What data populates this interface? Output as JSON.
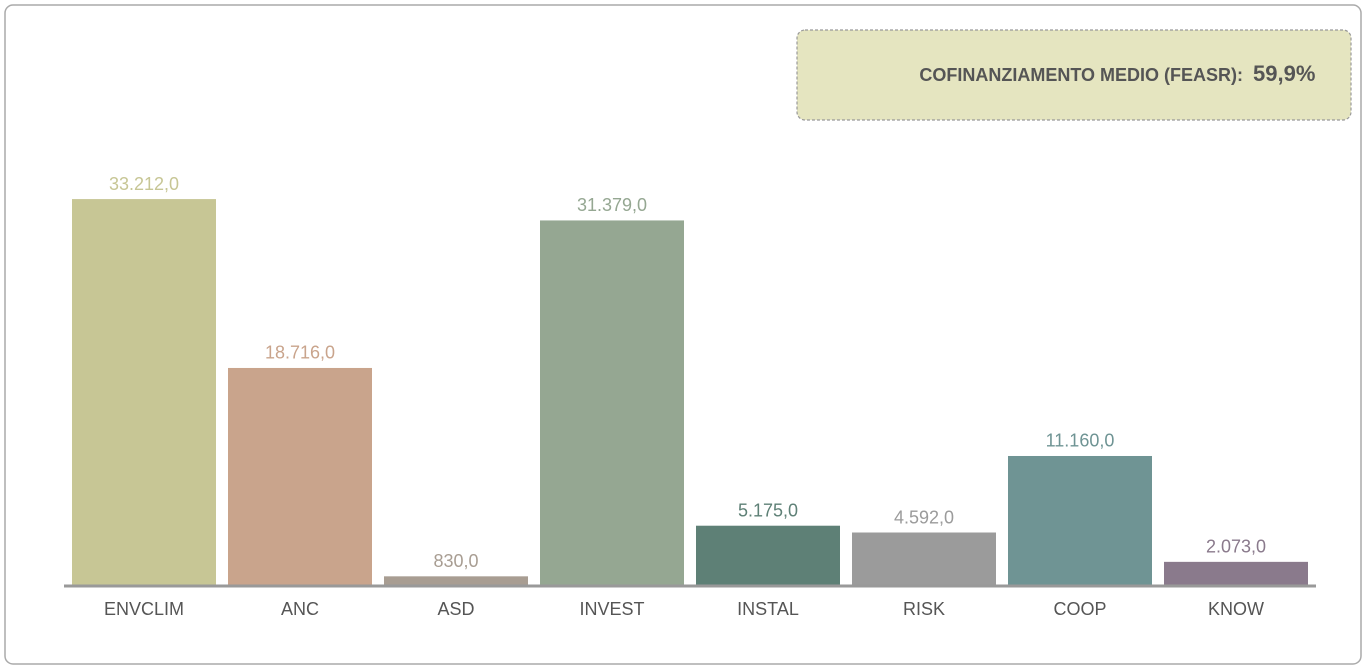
{
  "chart_data": {
    "type": "bar",
    "categories": [
      "ENVCLIM",
      "ANC",
      "ASD",
      "INVEST",
      "INSTAL",
      "RISK",
      "COOP",
      "KNOW"
    ],
    "values": [
      33212,
      18716,
      830,
      31379,
      5175,
      4592,
      11160,
      2073
    ],
    "value_labels": [
      "33.212,0",
      "18.716,0",
      "830,0",
      "31.379,0",
      "5.175,0",
      "4.592,0",
      "11.160,0",
      "2.073,0"
    ],
    "colors": [
      "#c7c695",
      "#c9a48c",
      "#a89d92",
      "#95a792",
      "#5e8076",
      "#9b9b9b",
      "#6f9494",
      "#8a7a8c"
    ],
    "ylim": [
      0,
      40000
    ],
    "annotation": {
      "label": "COFINANZIAMENTO MEDIO (FEASR):",
      "value": "59,9%"
    }
  }
}
